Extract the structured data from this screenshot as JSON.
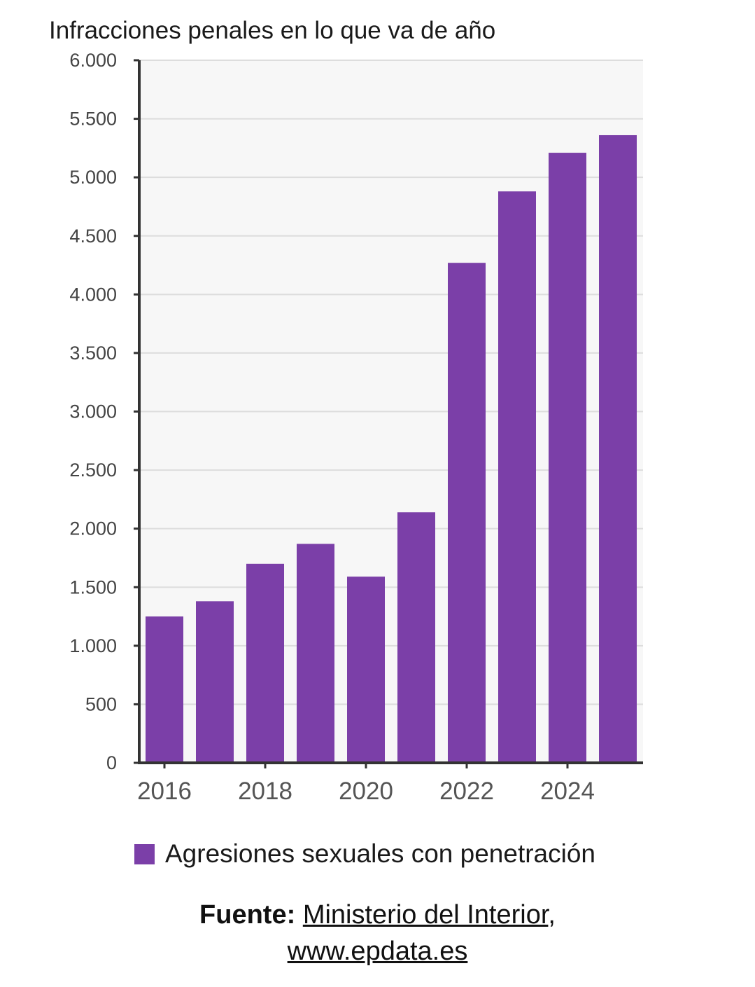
{
  "chart_data": {
    "type": "bar",
    "title": "Infracciones penales en lo que va de año",
    "xlabel": "",
    "ylabel": "",
    "categories": [
      "2016",
      "2017",
      "2018",
      "2019",
      "2020",
      "2021",
      "2022",
      "2023",
      "2024",
      "2025"
    ],
    "x_tick_labels": [
      "2016",
      "",
      "2018",
      "",
      "2020",
      "",
      "2022",
      "",
      "2024",
      ""
    ],
    "series": [
      {
        "name": "Agresiones sexuales con penetración",
        "color": "#7b3fa8",
        "values": [
          1250,
          1380,
          1700,
          1870,
          1590,
          2140,
          4270,
          4880,
          5210,
          5360
        ]
      }
    ],
    "ylim": [
      0,
      6000
    ],
    "y_ticks": [
      0,
      500,
      1000,
      1500,
      2000,
      2500,
      3000,
      3500,
      4000,
      4500,
      5000,
      5500,
      6000
    ],
    "y_tick_labels": [
      "0",
      "500",
      "1.000",
      "1.500",
      "2.000",
      "2.500",
      "3.000",
      "3.500",
      "4.000",
      "4.500",
      "5.000",
      "5.500",
      "6.000"
    ],
    "grid": true,
    "legend_position": "bottom"
  },
  "source": {
    "prefix": "Fuente:",
    "link1": "Ministerio del Interior",
    "separator": ",",
    "link2": "www.epdata.es"
  },
  "colors": {
    "bar": "#7b3fa8",
    "plot_background": "#f7f7f7",
    "gridline": "#dddddd",
    "axis": "#333333"
  }
}
